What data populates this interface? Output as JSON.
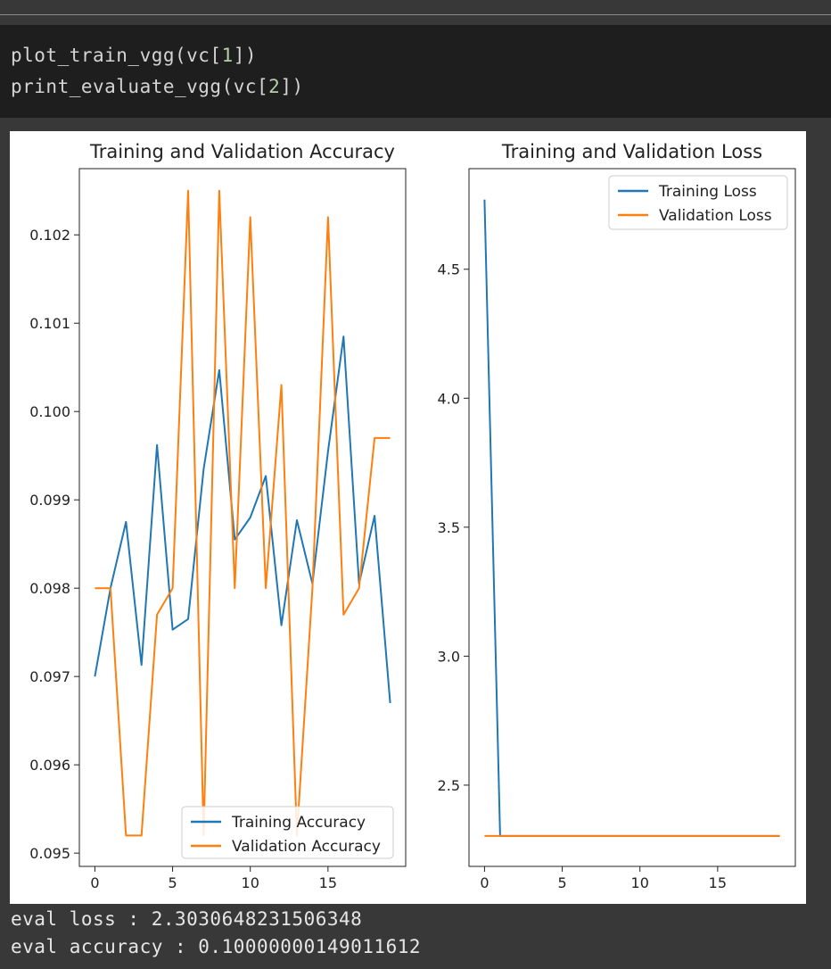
{
  "code_cell": {
    "line1": {
      "fn": "plot_train_vgg(vc[",
      "arg": "1",
      "end": "])"
    },
    "line2": {
      "fn": "print_evaluate_vgg(vc[",
      "arg": "2",
      "end": "])"
    }
  },
  "output": {
    "eval_loss": "eval loss : 2.3030648231506348",
    "eval_accuracy": "eval accuracy : 0.10000000149011612"
  },
  "colors": {
    "train": "#1f77b4",
    "val": "#ff7f0e"
  },
  "chart_data": [
    {
      "type": "line",
      "title": "Training and Validation Accuracy",
      "xlabel": "",
      "ylabel": "",
      "x": [
        0,
        1,
        2,
        3,
        4,
        5,
        6,
        7,
        8,
        9,
        10,
        11,
        12,
        13,
        14,
        15,
        16,
        17,
        18,
        19
      ],
      "xlim": [
        -1,
        20
      ],
      "ylim": [
        0.09485,
        0.10275
      ],
      "xticks": [
        0,
        5,
        10,
        15
      ],
      "xtick_labels": [
        "0",
        "5",
        "10",
        "15"
      ],
      "yticks": [
        0.095,
        0.096,
        0.097,
        0.098,
        0.099,
        0.1,
        0.101,
        0.102
      ],
      "ytick_labels": [
        "0.095",
        "0.096",
        "0.097",
        "0.098",
        "0.099",
        "0.100",
        "0.101",
        "0.102"
      ],
      "legend": "lower-right",
      "grid": false,
      "series": [
        {
          "name": "Training Accuracy",
          "color": "#1f77b4",
          "values": [
            0.097,
            0.098,
            0.09875,
            0.09713,
            0.09962,
            0.09753,
            0.09765,
            0.09935,
            0.10047,
            0.09855,
            0.0988,
            0.09927,
            0.09758,
            0.09877,
            0.09805,
            0.09955,
            0.10085,
            0.09805,
            0.09882,
            0.0967
          ]
        },
        {
          "name": "Validation Accuracy",
          "color": "#ff7f0e",
          "values": [
            0.098,
            0.098,
            0.0952,
            0.0952,
            0.0977,
            0.098,
            0.1025,
            0.0952,
            0.1025,
            0.098,
            0.1022,
            0.098,
            0.1003,
            0.0952,
            0.098,
            0.1022,
            0.0977,
            0.098,
            0.0997,
            0.0997
          ]
        }
      ]
    },
    {
      "type": "line",
      "title": "Training and Validation Loss",
      "xlabel": "",
      "ylabel": "",
      "x": [
        0,
        1,
        2,
        3,
        4,
        5,
        6,
        7,
        8,
        9,
        10,
        11,
        12,
        13,
        14,
        15,
        16,
        17,
        18,
        19
      ],
      "xlim": [
        -1,
        20
      ],
      "ylim": [
        2.185,
        4.89
      ],
      "xticks": [
        0,
        5,
        10,
        15
      ],
      "xtick_labels": [
        "0",
        "5",
        "10",
        "15"
      ],
      "yticks": [
        2.5,
        3.0,
        3.5,
        4.0,
        4.5
      ],
      "ytick_labels": [
        "2.5",
        "3.0",
        "3.5",
        "4.0",
        "4.5"
      ],
      "legend": "upper-right",
      "grid": false,
      "series": [
        {
          "name": "Training Loss",
          "color": "#1f77b4",
          "values": [
            4.77,
            2.3031,
            2.3031,
            2.3031,
            2.3031,
            2.3031,
            2.3031,
            2.3031,
            2.3031,
            2.3031,
            2.3031,
            2.3031,
            2.3031,
            2.3031,
            2.3031,
            2.3031,
            2.3031,
            2.3031,
            2.3031,
            2.3031
          ]
        },
        {
          "name": "Validation Loss",
          "color": "#ff7f0e",
          "values": [
            2.3031,
            2.3031,
            2.3031,
            2.3031,
            2.3031,
            2.3031,
            2.3031,
            2.3031,
            2.3031,
            2.3031,
            2.3031,
            2.3031,
            2.3031,
            2.3031,
            2.3031,
            2.3031,
            2.3031,
            2.3031,
            2.3031,
            2.3031
          ]
        }
      ]
    }
  ]
}
